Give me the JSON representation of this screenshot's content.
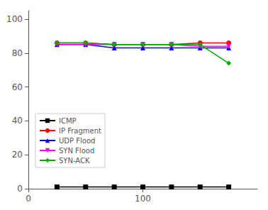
{
  "chart_data": {
    "type": "line",
    "x": [
      25,
      50,
      75,
      100,
      125,
      150,
      175
    ],
    "series": [
      {
        "name": "ICMP",
        "color": "#000000",
        "marker": "square",
        "line_style": "solid",
        "values": [
          1,
          1,
          1,
          1,
          1,
          1,
          1
        ]
      },
      {
        "name": "IP Fragment",
        "color": "#ff0000",
        "marker": "circle",
        "line_style": "solid",
        "values": [
          86,
          86,
          85,
          85,
          85,
          86,
          86
        ]
      },
      {
        "name": "UDP Flood",
        "color": "#0000ff",
        "marker": "triangle",
        "line_style": "solid",
        "values": [
          85,
          85,
          83,
          83,
          83,
          83,
          83
        ]
      },
      {
        "name": "SYN Flood",
        "color": "#ff00ff",
        "marker": "triangle-down",
        "line_style": "solid",
        "values": [
          85,
          85,
          85,
          85,
          85,
          84,
          84
        ]
      },
      {
        "name": "SYN-ACK",
        "color": "#00aa00",
        "marker": "diamond",
        "line_style": "solid",
        "values": [
          86,
          86,
          85,
          85,
          85,
          85,
          74
        ]
      }
    ],
    "xlim": [
      0,
      200
    ],
    "ylim": [
      0,
      105
    ],
    "xticks": [
      0,
      100
    ],
    "yticks": [
      0,
      20,
      40,
      60,
      80,
      100
    ],
    "grid": false,
    "legend": "lower left"
  }
}
